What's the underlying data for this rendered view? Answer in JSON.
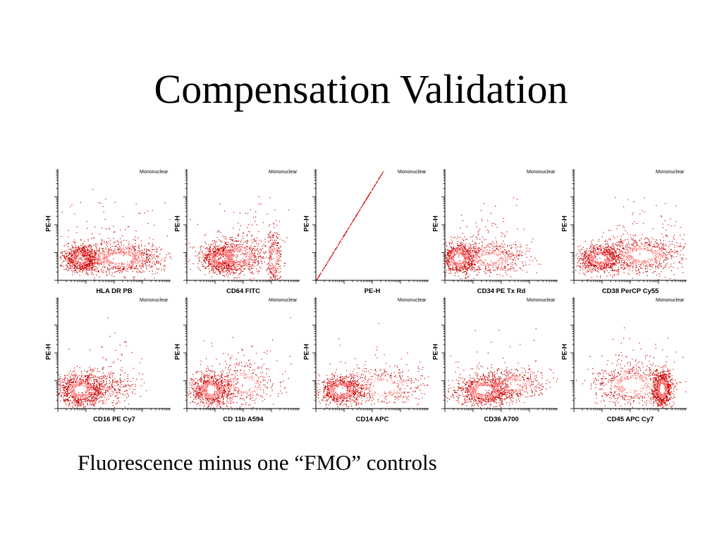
{
  "slide": {
    "title": "Compensation Validation",
    "caption": "Fluorescence minus one “FMO” controls"
  },
  "colors": {
    "dot_dense": "#ffffff",
    "dot_mid": "#ff6b6b",
    "dot_sparse": "#cc0000",
    "axis": "#000000"
  },
  "chart_data": [
    {
      "type": "scatter",
      "title": "",
      "gate": "Mononuclear",
      "xlabel": "HLA DR PB",
      "ylabel": "PE-H",
      "x_scale": "log",
      "y_scale": "log"
    },
    {
      "type": "scatter",
      "title": "",
      "gate": "Mononuclear",
      "xlabel": "CD64 FITC",
      "ylabel": "PE-H",
      "x_scale": "log",
      "y_scale": "log"
    },
    {
      "type": "scatter",
      "title": "",
      "gate": "Mononuclear",
      "xlabel": "PE-H",
      "ylabel": "PE-H",
      "x_scale": "log",
      "y_scale": "log"
    },
    {
      "type": "scatter",
      "title": "",
      "gate": "Mononuclear",
      "xlabel": "CD34 PE Tx Rd",
      "ylabel": "PE-H",
      "x_scale": "log",
      "y_scale": "log"
    },
    {
      "type": "scatter",
      "title": "",
      "gate": "Mononuclear",
      "xlabel": "CD38 PerCP Cy55",
      "ylabel": "PE-H",
      "x_scale": "log",
      "y_scale": "log"
    },
    {
      "type": "scatter",
      "title": "",
      "gate": "Mononuclear",
      "xlabel": "CD16 PE Cy7",
      "ylabel": "PE-H",
      "x_scale": "log",
      "y_scale": "log"
    },
    {
      "type": "scatter",
      "title": "",
      "gate": "Mononuclear",
      "xlabel": "CD 11b A594",
      "ylabel": "PE-H",
      "x_scale": "log",
      "y_scale": "log"
    },
    {
      "type": "scatter",
      "title": "",
      "gate": "Mononuclear",
      "xlabel": "CD14 APC",
      "ylabel": "PE-H",
      "x_scale": "log",
      "y_scale": "log"
    },
    {
      "type": "scatter",
      "title": "",
      "gate": "Mononuclear",
      "xlabel": "CD36 A700",
      "ylabel": "PE-H",
      "x_scale": "log",
      "y_scale": "log"
    },
    {
      "type": "scatter",
      "title": "",
      "gate": "Mononuclear",
      "xlabel": "CD45 APC Cy7",
      "ylabel": "PE-H",
      "x_scale": "log",
      "y_scale": "log"
    }
  ]
}
